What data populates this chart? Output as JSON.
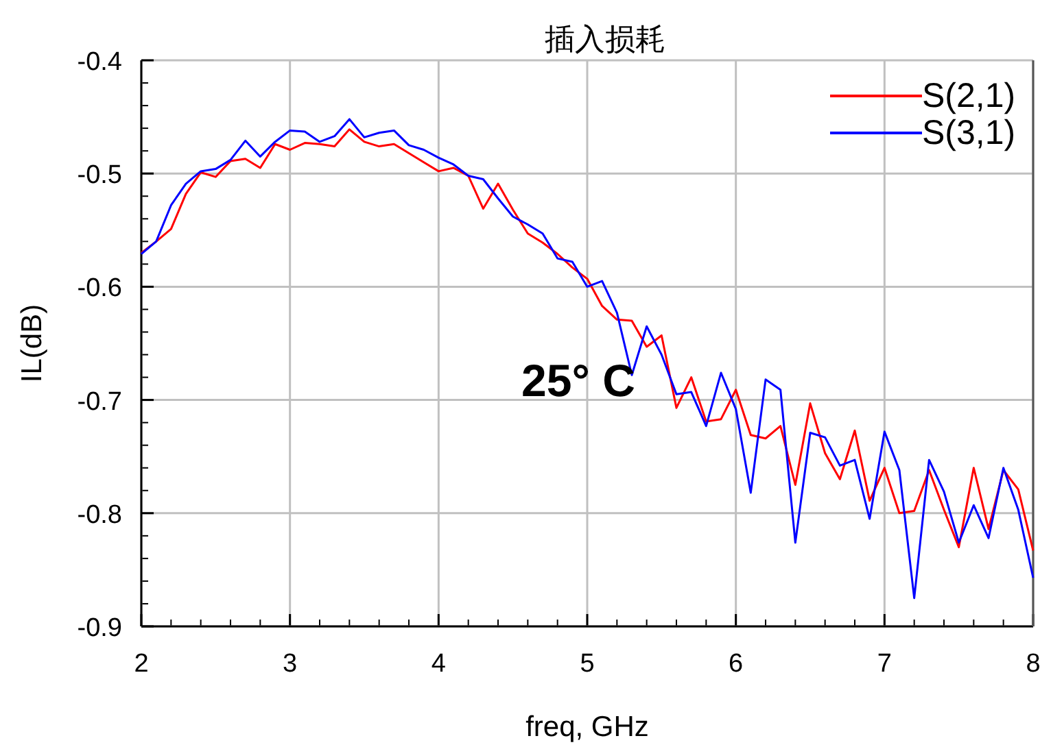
{
  "chart_data": {
    "type": "line",
    "title": "插入损耗",
    "xlabel": "freq, GHz",
    "ylabel": "IL(dB)",
    "annotations": [
      "25° C"
    ],
    "x": [
      2.0,
      2.1,
      2.2,
      2.3,
      2.4,
      2.5,
      2.6,
      2.7,
      2.8,
      2.9,
      3.0,
      3.1,
      3.2,
      3.3,
      3.4,
      3.5,
      3.6,
      3.7,
      3.8,
      3.9,
      4.0,
      4.1,
      4.2,
      4.3,
      4.4,
      4.5,
      4.6,
      4.7,
      4.8,
      4.9,
      5.0,
      5.1,
      5.2,
      5.3,
      5.4,
      5.5,
      5.6,
      5.7,
      5.8,
      5.9,
      6.0,
      6.1,
      6.2,
      6.3,
      6.4,
      6.5,
      6.6,
      6.7,
      6.8,
      6.9,
      7.0,
      7.1,
      7.2,
      7.3,
      7.4,
      7.5,
      7.6,
      7.7,
      7.8,
      7.9,
      8.0
    ],
    "series": [
      {
        "name": "S(2,1)",
        "color": "#ff0000",
        "values": [
          -0.57,
          -0.56,
          -0.549,
          -0.518,
          -0.499,
          -0.503,
          -0.489,
          -0.487,
          -0.495,
          -0.474,
          -0.479,
          -0.473,
          -0.474,
          -0.476,
          -0.461,
          -0.472,
          -0.476,
          -0.474,
          -0.482,
          -0.49,
          -0.498,
          -0.495,
          -0.502,
          -0.531,
          -0.509,
          -0.532,
          -0.553,
          -0.561,
          -0.571,
          -0.583,
          -0.593,
          -0.617,
          -0.629,
          -0.63,
          -0.653,
          -0.643,
          -0.707,
          -0.68,
          -0.719,
          -0.717,
          -0.691,
          -0.731,
          -0.734,
          -0.723,
          -0.775,
          -0.703,
          -0.747,
          -0.77,
          -0.727,
          -0.789,
          -0.76,
          -0.8,
          -0.798,
          -0.762,
          -0.797,
          -0.83,
          -0.76,
          -0.814,
          -0.762,
          -0.779,
          -0.833
        ]
      },
      {
        "name": "S(3,1)",
        "color": "#0000ff",
        "values": [
          -0.571,
          -0.56,
          -0.528,
          -0.509,
          -0.498,
          -0.496,
          -0.488,
          -0.471,
          -0.485,
          -0.472,
          -0.462,
          -0.463,
          -0.472,
          -0.467,
          -0.452,
          -0.468,
          -0.464,
          -0.462,
          -0.475,
          -0.479,
          -0.486,
          -0.492,
          -0.502,
          -0.505,
          -0.522,
          -0.538,
          -0.545,
          -0.553,
          -0.575,
          -0.578,
          -0.6,
          -0.595,
          -0.623,
          -0.678,
          -0.635,
          -0.66,
          -0.695,
          -0.693,
          -0.723,
          -0.676,
          -0.708,
          -0.782,
          -0.682,
          -0.691,
          -0.826,
          -0.729,
          -0.733,
          -0.758,
          -0.753,
          -0.805,
          -0.728,
          -0.762,
          -0.875,
          -0.753,
          -0.781,
          -0.826,
          -0.793,
          -0.822,
          -0.76,
          -0.797,
          -0.857
        ]
      }
    ],
    "xlim": [
      2,
      8
    ],
    "ylim": [
      -0.9,
      -0.4
    ],
    "xticks": [
      2,
      3,
      4,
      5,
      6,
      7,
      8
    ],
    "yticks": [
      -0.9,
      -0.8,
      -0.7,
      -0.6,
      -0.5,
      -0.4
    ],
    "grid": true,
    "legend": "top right",
    "marker": "none",
    "line_style": "solid"
  }
}
